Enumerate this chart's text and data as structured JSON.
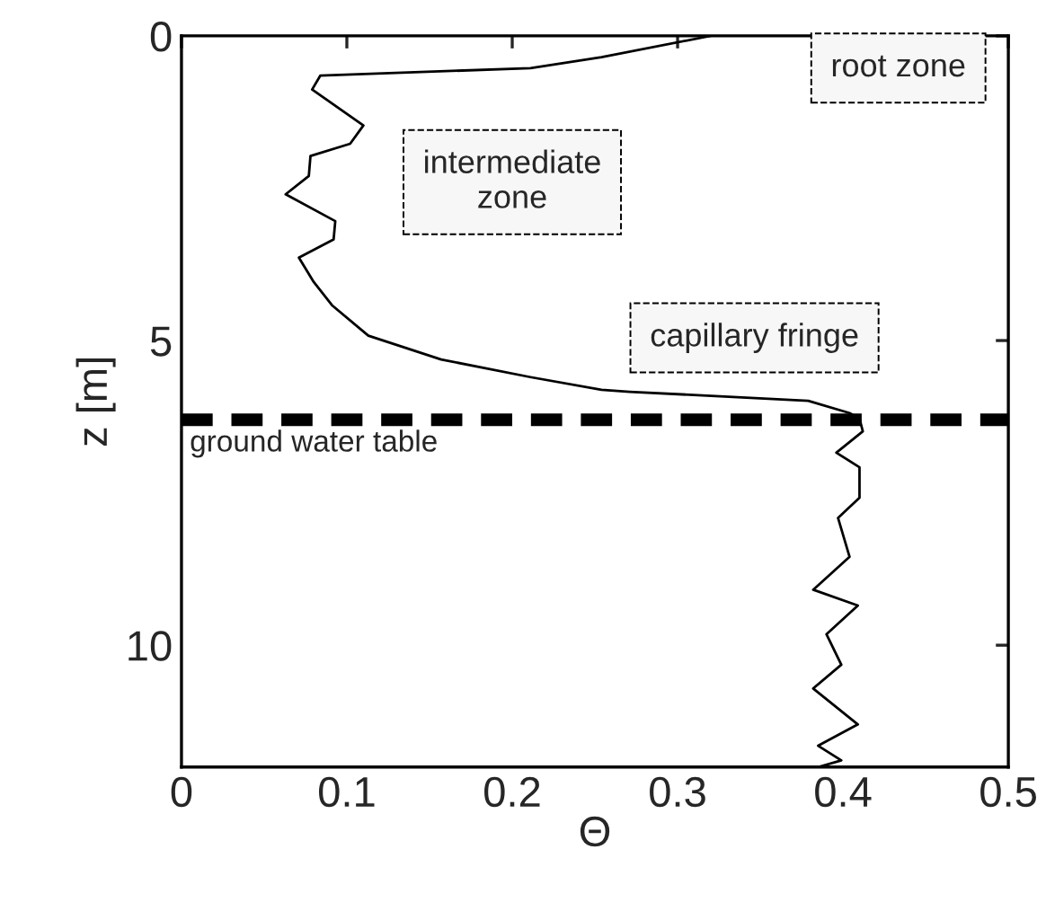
{
  "chart_data": {
    "type": "line",
    "xlabel": "Θ",
    "ylabel": "z [m]",
    "xlim": [
      0,
      0.5
    ],
    "xticks": [
      0,
      0.1,
      0.2,
      0.3,
      0.4,
      0.5
    ],
    "ylim": [
      12,
      0
    ],
    "yticks": [
      0,
      5,
      10
    ],
    "series": [
      {
        "color": "#000000",
        "x": [
          0.32,
          0.254,
          0.211,
          0.084,
          0.079,
          0.11,
          0.102,
          0.078,
          0.077,
          0.063,
          0.093,
          0.092,
          0.071,
          0.08,
          0.091,
          0.113,
          0.157,
          0.211,
          0.254,
          0.271,
          0.379,
          0.404,
          0.41,
          0.412,
          0.396,
          0.41,
          0.41,
          0.397,
          0.404,
          0.382,
          0.409,
          0.39,
          0.399,
          0.382,
          0.409,
          0.385,
          0.399,
          0.385
        ],
        "values": [
          0,
          0.35,
          0.53,
          0.65,
          0.88,
          1.47,
          1.77,
          1.97,
          2.3,
          2.6,
          3.04,
          3.34,
          3.64,
          4.04,
          4.42,
          4.92,
          5.31,
          5.6,
          5.81,
          5.84,
          5.99,
          6.19,
          6.28,
          6.49,
          6.84,
          7.08,
          7.58,
          7.91,
          8.55,
          9.09,
          9.35,
          9.82,
          10.32,
          10.71,
          11.3,
          11.65,
          11.89,
          12.0
        ]
      }
    ],
    "ref_lines": [
      {
        "axis": "y",
        "value": 6.3,
        "label": "ground water table",
        "color": "#000000",
        "line_style": "dashed"
      }
    ],
    "annotations": [
      "root zone",
      "intermediate\nzone",
      "capillary fringe"
    ],
    "grid": false,
    "legend": false
  }
}
